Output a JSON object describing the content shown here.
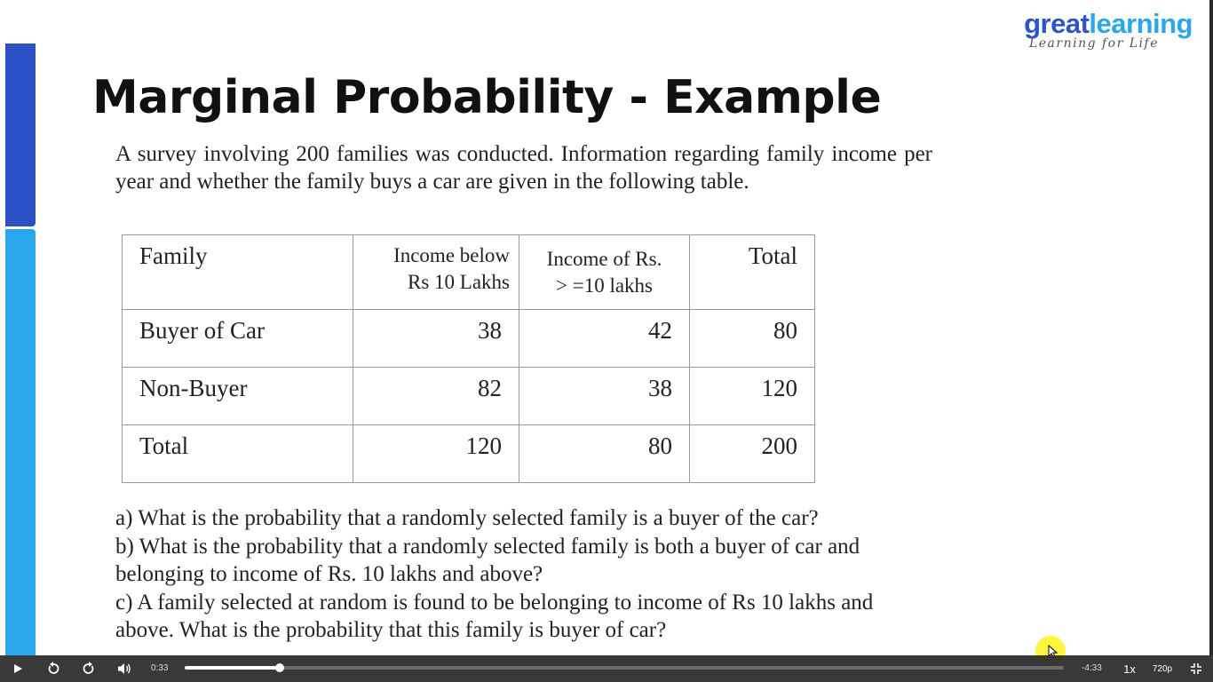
{
  "slide": {
    "logo": {
      "great": "great",
      "learning": "learning",
      "tagline": "Learning for Life"
    },
    "title": "Marginal Probability - Example",
    "intro": "A survey involving 200 families was conducted. Information regarding family income  per year and whether the family buys a car are given in the following table.",
    "table": {
      "headers": [
        "Family",
        "Income below Rs 10 Lakhs",
        "Income of Rs. > =10 lakhs",
        "Total"
      ],
      "header_lines": {
        "col2": [
          "Income below",
          "Rs 10 Lakhs"
        ],
        "col3": [
          "Income of Rs.",
          "> =10 lakhs"
        ]
      },
      "rows": [
        [
          "Buyer of Car",
          "38",
          "42",
          "80"
        ],
        [
          "Non-Buyer",
          "82",
          "38",
          "120"
        ],
        [
          "Total",
          "120",
          "80",
          "200"
        ]
      ]
    },
    "questions": [
      "a) What is the probability that a randomly selected family is a buyer of the car?",
      "b) What is the probability that a randomly selected family is both a buyer of car and belonging to income of Rs. 10 lakhs and above?",
      "c) A family selected at random is found to be belonging to income of Rs 10 lakhs and above. What is the probability that this family is buyer of car?"
    ],
    "colors": {
      "brand_dark": "#2b4fc4",
      "brand_light": "#2aa6ec",
      "cursor_highlight": "#fff000"
    }
  },
  "player": {
    "current_time": "0:33",
    "remaining_time": "-4:33",
    "progress_fraction": 0.108,
    "speed": "1x",
    "quality": "720p",
    "icons": [
      "play-icon",
      "rewind-icon",
      "forward-icon",
      "volume-icon",
      "fullscreen-exit-icon"
    ]
  }
}
